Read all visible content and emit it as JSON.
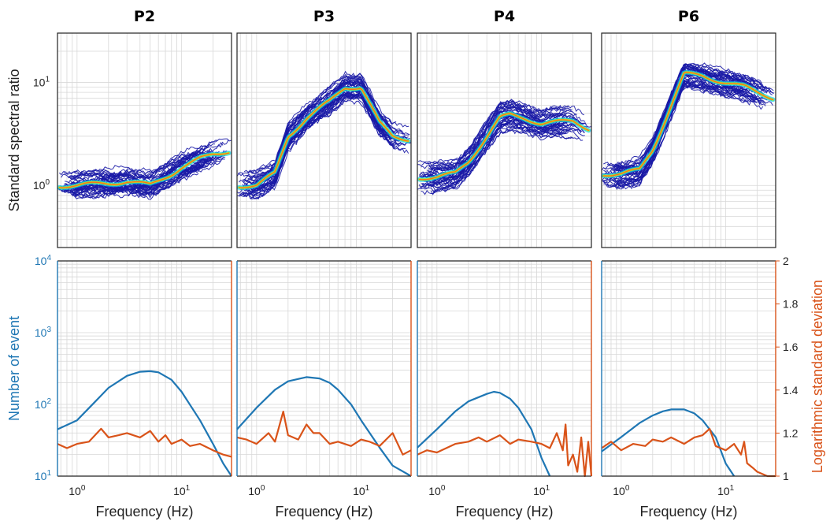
{
  "figure": {
    "panel_titles": [
      "P2",
      "P3",
      "P4",
      "P6"
    ],
    "top_ylabel": "Standard spectral ratio",
    "bottom_ylabel_left": "Number of event",
    "bottom_ylabel_right": "Logarithmic standard deviation",
    "xlabel": "Frequency (Hz)",
    "colors": {
      "event_count": "#1f77b4",
      "log_std": "#d95319",
      "curves": "#1a1aa6"
    }
  },
  "chart_data": [
    {
      "type": "line",
      "panel": "P2",
      "title": "P2",
      "xlabel": "",
      "ylabel": "Standard spectral ratio",
      "xscale": "log",
      "yscale": "log",
      "xlim": [
        0.65,
        30
      ],
      "ylim": [
        0.25,
        30
      ],
      "x_ticks": [
        "10^0",
        "10^1"
      ],
      "y_ticks": [
        "10^0",
        "10^1"
      ],
      "median_curve": {
        "x": [
          0.65,
          1,
          2,
          3,
          5,
          8,
          10,
          15,
          20,
          30
        ],
        "y": [
          1.0,
          1.0,
          1.05,
          1.1,
          1.0,
          1.3,
          1.5,
          1.8,
          2.0,
          2.2
        ]
      },
      "grid": true
    },
    {
      "type": "line",
      "panel": "P3",
      "title": "P3",
      "xlabel": "",
      "ylabel": "",
      "xscale": "log",
      "yscale": "log",
      "xlim": [
        0.65,
        30
      ],
      "ylim": [
        0.25,
        30
      ],
      "x_ticks": [],
      "y_ticks": [],
      "median_curve": {
        "x": [
          0.65,
          1,
          1.5,
          2,
          3,
          5,
          7,
          10,
          15,
          20,
          30
        ],
        "y": [
          1.0,
          1.0,
          1.3,
          3.0,
          4.5,
          6.5,
          9.0,
          9.0,
          4.0,
          3.0,
          2.8
        ]
      },
      "grid": true
    },
    {
      "type": "line",
      "panel": "P4",
      "title": "P4",
      "xlabel": "",
      "ylabel": "",
      "xscale": "log",
      "yscale": "log",
      "xlim": [
        0.65,
        30
      ],
      "ylim": [
        0.25,
        30
      ],
      "x_ticks": [],
      "y_ticks": [],
      "median_curve": {
        "x": [
          0.65,
          1,
          1.5,
          2,
          3,
          4,
          5,
          7,
          10,
          20,
          30
        ],
        "y": [
          1.2,
          1.2,
          1.3,
          1.7,
          3.0,
          4.5,
          4.8,
          4.5,
          4.0,
          4.2,
          3.5
        ]
      },
      "grid": true
    },
    {
      "type": "line",
      "panel": "P6",
      "title": "P6",
      "xlabel": "",
      "ylabel": "",
      "xscale": "log",
      "yscale": "log",
      "xlim": [
        0.65,
        30
      ],
      "ylim": [
        0.25,
        30
      ],
      "x_ticks": [],
      "y_ticks": [],
      "median_curve": {
        "x": [
          0.65,
          1,
          1.5,
          2,
          3,
          4,
          6,
          10,
          15,
          20,
          30
        ],
        "y": [
          1.3,
          1.3,
          1.4,
          2.2,
          6.0,
          12.0,
          11.5,
          10.0,
          9.0,
          8.0,
          7.0
        ]
      },
      "grid": true
    },
    {
      "type": "line",
      "panel": "P2",
      "xlabel": "Frequency (Hz)",
      "ylabel_left": "Number of event",
      "ylabel_right": "Logarithmic standard deviation",
      "xscale": "log",
      "yscale_left": "log",
      "xlim": [
        0.65,
        30
      ],
      "ylim_left": [
        10,
        10000
      ],
      "ylim_right": [
        1,
        2
      ],
      "x_ticks": [
        "10^0",
        "10^1"
      ],
      "y_ticks_left": [
        "10^1",
        "10^2",
        "10^3",
        "10^4"
      ],
      "y_ticks_right": [],
      "series": [
        {
          "name": "Number of event",
          "axis": "left",
          "x": [
            0.65,
            1,
            1.5,
            2,
            3,
            4,
            5,
            6,
            8,
            10,
            15,
            20,
            25,
            30
          ],
          "y": [
            45,
            60,
            110,
            170,
            250,
            285,
            290,
            280,
            220,
            150,
            60,
            28,
            15,
            10
          ]
        },
        {
          "name": "Logarithmic standard deviation",
          "axis": "right",
          "x": [
            0.65,
            0.8,
            1,
            1.3,
            1.7,
            2,
            2.5,
            3,
            4,
            5,
            6,
            7,
            8,
            10,
            12,
            15,
            20,
            25,
            30
          ],
          "y": [
            1.15,
            1.13,
            1.15,
            1.16,
            1.22,
            1.18,
            1.19,
            1.2,
            1.18,
            1.21,
            1.16,
            1.19,
            1.15,
            1.17,
            1.14,
            1.15,
            1.12,
            1.1,
            1.09
          ]
        }
      ],
      "grid": true
    },
    {
      "type": "line",
      "panel": "P3",
      "xlabel": "Frequency (Hz)",
      "xscale": "log",
      "yscale_left": "log",
      "xlim": [
        0.65,
        30
      ],
      "ylim_left": [
        10,
        10000
      ],
      "ylim_right": [
        1,
        2
      ],
      "x_ticks": [
        "10^0",
        "10^1"
      ],
      "series": [
        {
          "name": "Number of event",
          "axis": "left",
          "x": [
            0.65,
            1,
            1.5,
            2,
            3,
            4,
            5,
            6,
            8,
            10,
            15,
            20,
            30
          ],
          "y": [
            45,
            90,
            160,
            210,
            240,
            230,
            200,
            160,
            100,
            60,
            25,
            14,
            8
          ]
        },
        {
          "name": "Logarithmic standard deviation",
          "axis": "right",
          "x": [
            0.65,
            0.8,
            1,
            1.3,
            1.5,
            1.8,
            2,
            2.5,
            3,
            3.5,
            4,
            5,
            6,
            8,
            10,
            12,
            15,
            20,
            25,
            30
          ],
          "y": [
            1.18,
            1.17,
            1.15,
            1.2,
            1.16,
            1.3,
            1.19,
            1.17,
            1.24,
            1.2,
            1.2,
            1.15,
            1.16,
            1.14,
            1.17,
            1.16,
            1.14,
            1.2,
            1.1,
            1.12
          ]
        }
      ],
      "grid": true
    },
    {
      "type": "line",
      "panel": "P4",
      "xlabel": "Frequency (Hz)",
      "xscale": "log",
      "yscale_left": "log",
      "xlim": [
        0.65,
        30
      ],
      "ylim_left": [
        10,
        10000
      ],
      "ylim_right": [
        1,
        2
      ],
      "x_ticks": [
        "10^0",
        "10^1"
      ],
      "series": [
        {
          "name": "Number of event",
          "axis": "left",
          "x": [
            0.65,
            1,
            1.5,
            2,
            3,
            3.5,
            4,
            5,
            6,
            8,
            10,
            12
          ],
          "y": [
            25,
            45,
            80,
            110,
            140,
            150,
            145,
            120,
            90,
            45,
            18,
            10
          ]
        },
        {
          "name": "Logarithmic standard deviation",
          "axis": "right",
          "x": [
            0.65,
            0.8,
            1,
            1.5,
            2,
            2.5,
            3,
            4,
            5,
            6,
            8,
            10,
            12,
            14,
            16,
            17,
            18,
            20,
            22,
            24,
            26,
            28,
            30
          ],
          "y": [
            1.1,
            1.12,
            1.11,
            1.15,
            1.16,
            1.18,
            1.16,
            1.19,
            1.15,
            1.17,
            1.16,
            1.15,
            1.13,
            1.2,
            1.12,
            1.24,
            1.05,
            1.1,
            1.02,
            1.18,
            1.0,
            1.16,
            1.0
          ]
        }
      ],
      "grid": true
    },
    {
      "type": "line",
      "panel": "P6",
      "xlabel": "Frequency (Hz)",
      "xscale": "log",
      "yscale_left": "log",
      "xlim": [
        0.65,
        30
      ],
      "ylim_left": [
        10,
        10000
      ],
      "ylim_right": [
        1,
        2
      ],
      "x_ticks": [
        "10^0",
        "10^1"
      ],
      "y_ticks_right": [
        "1",
        "1.2",
        "1.4",
        "1.6",
        "1.8",
        "2"
      ],
      "series": [
        {
          "name": "Number of event",
          "axis": "left",
          "x": [
            0.65,
            1,
            1.5,
            2,
            2.5,
            3,
            4,
            5,
            6,
            8,
            10,
            12
          ],
          "y": [
            22,
            35,
            55,
            70,
            80,
            85,
            85,
            75,
            60,
            35,
            15,
            10
          ]
        },
        {
          "name": "Logarithmic standard deviation",
          "axis": "right",
          "x": [
            0.65,
            0.8,
            1,
            1.3,
            1.7,
            2,
            2.5,
            3,
            4,
            5,
            6,
            7,
            8,
            10,
            12,
            14,
            15,
            16,
            18,
            20,
            25,
            30
          ],
          "y": [
            1.13,
            1.16,
            1.12,
            1.15,
            1.14,
            1.17,
            1.16,
            1.18,
            1.15,
            1.18,
            1.19,
            1.22,
            1.14,
            1.12,
            1.15,
            1.1,
            1.16,
            1.06,
            1.04,
            1.02,
            1.0,
            1.0
          ]
        }
      ],
      "grid": true
    }
  ]
}
